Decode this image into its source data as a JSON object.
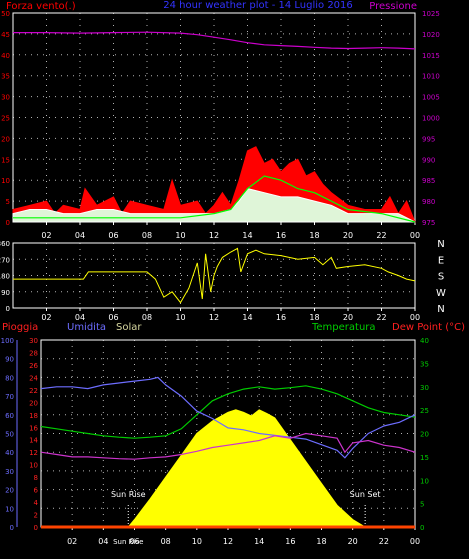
{
  "colors": {
    "wind": "#ff0000",
    "gust": "#ffffff",
    "wind_avg": "#00ff00",
    "pressure": "#cc00cc",
    "direction": "#ffff00",
    "rain": "#ff2020",
    "humidity": "#6d6dff",
    "solar": "#ffff00",
    "temperature": "#00cc00",
    "dewpoint": "#cc33cc",
    "axis": "#ffffff",
    "grid": "#ffffff"
  },
  "chart_data": [
    {
      "type": "line",
      "title": "24 hour weather plot - 14 Luglio 2016",
      "left_label": "Forza vento(.)",
      "right_label": "Pressione",
      "x_ticks": [
        "02",
        "04",
        "06",
        "08",
        "10",
        "12",
        "14",
        "16",
        "18",
        "20",
        "22",
        "00"
      ],
      "y_left_ticks": [
        "0",
        "5",
        "10",
        "15",
        "20",
        "25",
        "30",
        "35",
        "40",
        "45",
        "50"
      ],
      "y_left_range": [
        0,
        50
      ],
      "y_right_ticks": [
        "975",
        "980",
        "985",
        "990",
        "995",
        "1000",
        "1005",
        "1010",
        "1015",
        "1020",
        "1025"
      ],
      "y_right_range": [
        975,
        1025
      ],
      "grid": true,
      "series": [
        {
          "name": "pressure",
          "axis": "right",
          "x": [
            0,
            2,
            4,
            6,
            8,
            10,
            11,
            12,
            13,
            14,
            15,
            16,
            17,
            18,
            19,
            20,
            21,
            22,
            23,
            24
          ],
          "values": [
            1020.3,
            1020.3,
            1020.2,
            1020.3,
            1020.4,
            1020.2,
            1019.8,
            1019.2,
            1018.6,
            1017.9,
            1017.4,
            1017.2,
            1017.0,
            1016.8,
            1016.6,
            1016.5,
            1016.6,
            1016.7,
            1016.6,
            1016.4
          ]
        },
        {
          "name": "wind",
          "axis": "left",
          "x": [
            0,
            1,
            2,
            2.5,
            3,
            4,
            4.3,
            5,
            6,
            6.5,
            7,
            8,
            9,
            9.5,
            10,
            11,
            11.5,
            12,
            12.5,
            13,
            13.5,
            14,
            14.5,
            15,
            15.5,
            16,
            16.5,
            17,
            17.5,
            18,
            18.5,
            19,
            20,
            21,
            22,
            22.5,
            23,
            23.5,
            24
          ],
          "values": [
            3,
            4,
            5,
            2,
            4,
            3,
            8,
            4,
            6,
            2,
            5,
            4,
            3,
            10,
            4,
            5,
            2,
            4,
            7,
            4,
            10,
            17,
            18,
            14,
            15,
            12,
            14,
            15,
            11,
            12,
            9,
            7,
            4,
            3,
            3,
            6,
            2,
            5,
            0
          ]
        },
        {
          "name": "gust",
          "axis": "left",
          "x": [
            0,
            1,
            2,
            3,
            4,
            5,
            6,
            7,
            8,
            9,
            10,
            11,
            12,
            13,
            13.5,
            14,
            15,
            16,
            17,
            18,
            19,
            20,
            21,
            22,
            23,
            24
          ],
          "values": [
            2,
            3,
            3,
            2,
            2,
            3,
            3,
            2,
            2,
            2,
            2,
            2,
            2,
            3,
            5,
            8,
            7,
            6,
            6,
            5,
            4,
            2,
            2,
            2,
            2,
            0
          ]
        },
        {
          "name": "wind_avg",
          "axis": "left",
          "x": [
            0,
            2,
            4,
            6,
            8,
            10,
            12,
            13,
            14,
            15,
            16,
            17,
            18,
            19,
            20,
            22,
            24
          ],
          "values": [
            1,
            1,
            1,
            1,
            1,
            1,
            2,
            3,
            8,
            11,
            10,
            8,
            7,
            5,
            3,
            2,
            0
          ]
        }
      ]
    },
    {
      "type": "line",
      "title": "",
      "y_left_ticks": [
        "0",
        "90",
        "180",
        "270",
        "360"
      ],
      "y_left_range": [
        0,
        360
      ],
      "y_right_ticks": [
        "N",
        "W",
        "S",
        "E",
        "N"
      ],
      "x_ticks": [
        "02",
        "04",
        "06",
        "08",
        "10",
        "12",
        "14",
        "16",
        "18",
        "20",
        "22",
        "00"
      ],
      "grid": true,
      "series": [
        {
          "name": "direction",
          "x": [
            0,
            4.2,
            4.5,
            8,
            8.5,
            9,
            9.5,
            10,
            10.5,
            11,
            11.3,
            11.5,
            11.8,
            12,
            12.2,
            12.5,
            13,
            13.4,
            13.6,
            14,
            14.5,
            15,
            16,
            17,
            18,
            18.5,
            19,
            19.3,
            20,
            21,
            22,
            22.4,
            23,
            23.5,
            24
          ],
          "values": [
            160,
            160,
            200,
            200,
            160,
            60,
            90,
            30,
            110,
            250,
            50,
            300,
            90,
            180,
            230,
            280,
            310,
            330,
            200,
            300,
            320,
            300,
            290,
            270,
            280,
            240,
            280,
            220,
            230,
            240,
            220,
            200,
            180,
            160,
            150
          ]
        }
      ]
    },
    {
      "type": "line",
      "title": "",
      "labels": {
        "rain": "Pioggia",
        "humidity": "Umidita",
        "solar": "Solar",
        "temperature": "Temperatura",
        "dewpoint": "Dew Point (°C)"
      },
      "y_humidity_ticks": [
        "0",
        "10",
        "20",
        "30",
        "40",
        "50",
        "60",
        "70",
        "80",
        "90",
        "100"
      ],
      "y_humidity_range": [
        0,
        100
      ],
      "y_rain_ticks": [
        "0",
        "2",
        "4",
        "6",
        "8",
        "10",
        "12",
        "14",
        "16",
        "18",
        "20",
        "22",
        "24",
        "26",
        "28",
        "30"
      ],
      "y_rain_range": [
        0,
        30
      ],
      "y_right_ticks": [
        "0",
        "5",
        "10",
        "15",
        "20",
        "25",
        "30",
        "35",
        "40"
      ],
      "y_right_range": [
        0,
        40
      ],
      "x_ticks": [
        "02",
        "04",
        "06",
        "08",
        "10",
        "12",
        "14",
        "16",
        "18",
        "20",
        "22",
        "00"
      ],
      "sun_labels": {
        "rise": "Sun Rise",
        "set": "Sun Set",
        "tick": "Sun Rise"
      },
      "sun_rise_hour": 5.6,
      "sun_set_hour": 20.8,
      "grid": true,
      "series": [
        {
          "name": "humidity",
          "axis": "humidity",
          "x": [
            0,
            1,
            2,
            3,
            4,
            5,
            6,
            7,
            7.5,
            8,
            9,
            10,
            11,
            12,
            13,
            14,
            15,
            16,
            17,
            18,
            19,
            19.5,
            20,
            21,
            22,
            23,
            24
          ],
          "values": [
            74,
            75,
            75,
            74,
            76,
            77,
            78,
            79,
            80,
            76,
            70,
            62,
            58,
            53,
            52,
            50,
            49,
            48,
            47,
            44,
            41,
            37,
            42,
            50,
            54,
            56,
            60
          ]
        },
        {
          "name": "temperature",
          "axis": "right",
          "x": [
            0,
            1,
            2,
            3,
            4,
            5,
            6,
            7,
            8,
            9,
            10,
            11,
            12,
            13,
            14,
            15,
            16,
            17,
            18,
            19,
            20,
            21,
            22,
            23,
            24
          ],
          "values": [
            21.5,
            21.0,
            20.5,
            20.0,
            19.5,
            19.2,
            19.0,
            19.2,
            19.5,
            21.0,
            24.0,
            27.0,
            28.5,
            29.5,
            30.0,
            29.5,
            29.8,
            30.2,
            29.5,
            28.5,
            27.0,
            25.5,
            24.5,
            24.0,
            23.5
          ]
        },
        {
          "name": "dewpoint",
          "axis": "right",
          "x": [
            0,
            1,
            2,
            3,
            4,
            5,
            6,
            7,
            8,
            9,
            10,
            11,
            12,
            13,
            14,
            15,
            16,
            17,
            18,
            19,
            19.5,
            20,
            21,
            22,
            23,
            24
          ],
          "values": [
            16.0,
            15.5,
            15.0,
            15.0,
            14.8,
            14.6,
            14.5,
            14.8,
            15.0,
            15.5,
            16.2,
            17.0,
            17.5,
            18.0,
            18.5,
            19.5,
            19.0,
            20.0,
            19.5,
            19.0,
            16.0,
            18.0,
            18.5,
            17.5,
            17.0,
            16.0
          ]
        },
        {
          "name": "solar",
          "axis": "rain",
          "x": [
            5.6,
            6,
            7,
            8,
            9,
            10,
            11,
            12,
            12.5,
            13,
            13.5,
            14,
            14.5,
            15,
            16,
            17,
            18,
            19,
            20,
            20.8
          ],
          "values": [
            0,
            1.2,
            4.5,
            8,
            11.5,
            15,
            17,
            18.4,
            18.8,
            18.4,
            17.8,
            18.8,
            18.2,
            17.5,
            14,
            10.5,
            7,
            3.5,
            1.2,
            0
          ]
        },
        {
          "name": "rain",
          "axis": "rain",
          "x": [
            0,
            24
          ],
          "values": [
            0,
            0
          ]
        }
      ]
    }
  ]
}
